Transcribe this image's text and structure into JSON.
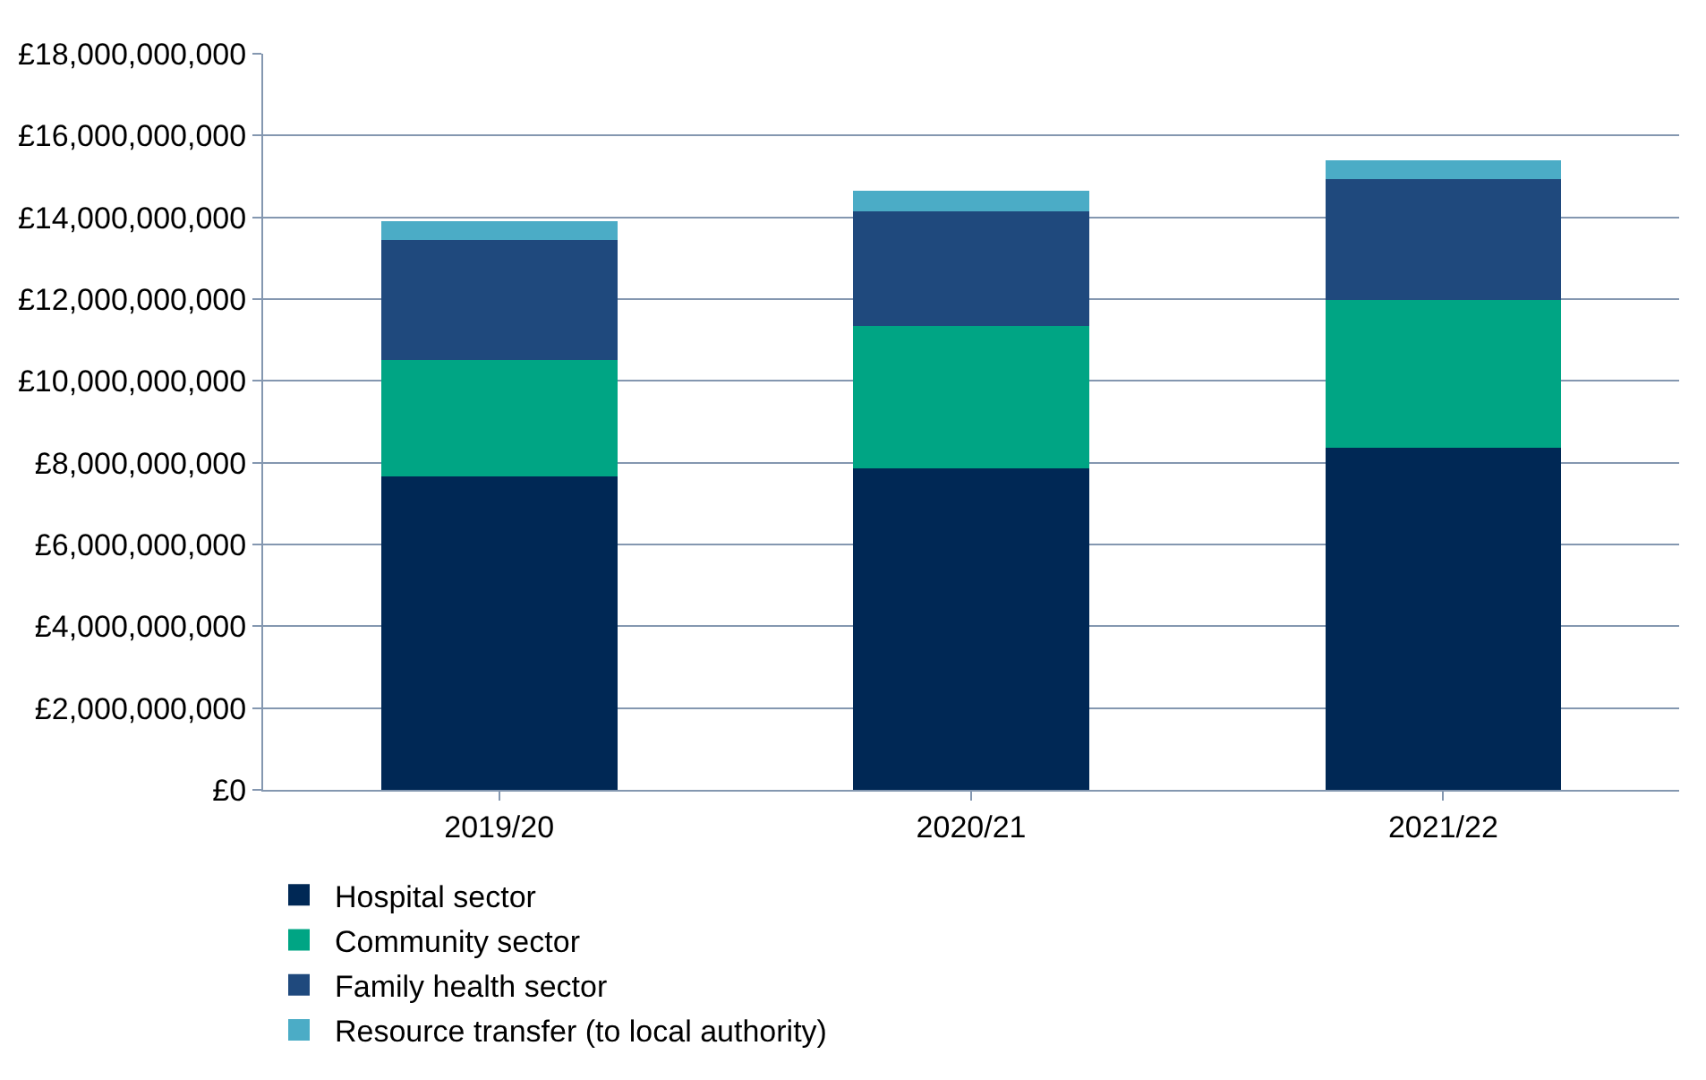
{
  "chart_data": {
    "type": "bar",
    "stacked": true,
    "categories": [
      "2019/20",
      "2020/21",
      "2021/22"
    ],
    "series": [
      {
        "name": "Hospital sector",
        "color": "#002855",
        "values": [
          7660000000,
          7870000000,
          8370000000
        ]
      },
      {
        "name": "Community sector",
        "color": "#00a584",
        "values": [
          2850000000,
          3470000000,
          3600000000
        ]
      },
      {
        "name": "Family health sector",
        "color": "#1f497d",
        "values": [
          2930000000,
          2810000000,
          2970000000
        ]
      },
      {
        "name": "Resource transfer (to local authority)",
        "color": "#4bacc6",
        "values": [
          460000000,
          500000000,
          460000000
        ]
      }
    ],
    "ylim": [
      0,
      18000000000
    ],
    "yticks": [
      {
        "value": 0,
        "label": "£0"
      },
      {
        "value": 2000000000,
        "label": "£2,000,000,000"
      },
      {
        "value": 4000000000,
        "label": "£4,000,000,000"
      },
      {
        "value": 6000000000,
        "label": "£6,000,000,000"
      },
      {
        "value": 8000000000,
        "label": "£8,000,000,000"
      },
      {
        "value": 10000000000,
        "label": "£10,000,000,000"
      },
      {
        "value": 12000000000,
        "label": "£12,000,000,000"
      },
      {
        "value": 14000000000,
        "label": "£14,000,000,000"
      },
      {
        "value": 16000000000,
        "label": "£16,000,000,000"
      },
      {
        "value": 18000000000,
        "label": "£18,000,000,000"
      }
    ],
    "grid": "y",
    "legend": "bottom"
  }
}
